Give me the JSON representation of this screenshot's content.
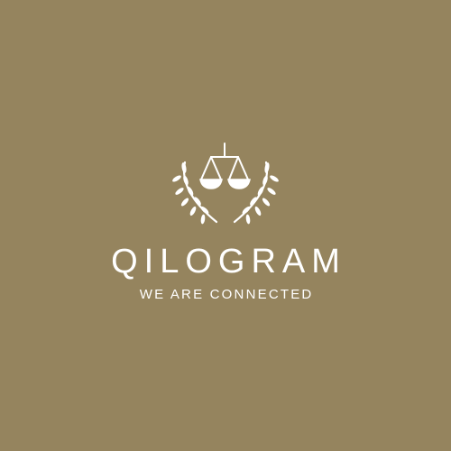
{
  "brand": {
    "name": "QILOGRAM",
    "tagline": "WE ARE CONNECTED"
  },
  "emblem": {
    "icon": "scales-of-justice-icon",
    "wreath": "laurel-wreath-icon"
  },
  "colors": {
    "background": "#95845e",
    "foreground": "#ffffff"
  }
}
